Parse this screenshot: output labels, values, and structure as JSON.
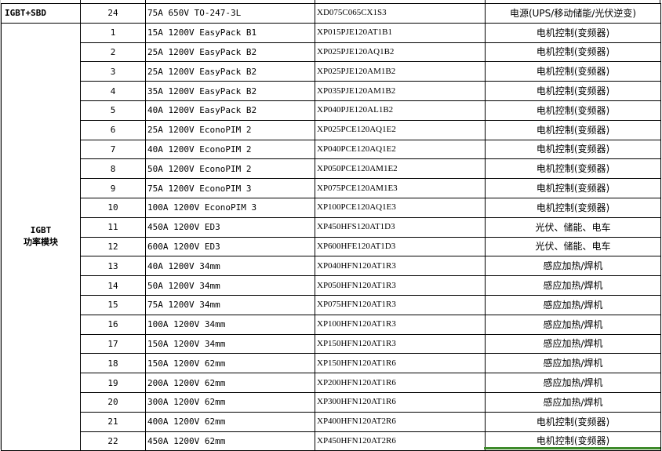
{
  "sheet": {
    "first_group": {
      "category": "IGBT+SBD",
      "row": {
        "no": "24",
        "spec": "75A 650V TO-247-3L",
        "part": "XD075C065CX1S3",
        "app": "电源(UPS/移动储能/光伏逆变)"
      }
    },
    "second_group": {
      "category_line1": "IGBT",
      "category_line2": "功率模块",
      "rows": [
        {
          "no": "1",
          "spec": "15A 1200V EasyPack B1",
          "part": "XP015PJE120AT1B1",
          "app": "电机控制(变频器)"
        },
        {
          "no": "2",
          "spec": "25A 1200V EasyPack B2",
          "part": "XP025PJE120AQ1B2",
          "app": "电机控制(变频器)"
        },
        {
          "no": "3",
          "spec": "25A 1200V EasyPack B2",
          "part": "XP025PJE120AM1B2",
          "app": "电机控制(变频器)"
        },
        {
          "no": "4",
          "spec": "35A 1200V EasyPack B2",
          "part": "XP035PJE120AM1B2",
          "app": "电机控制(变频器)"
        },
        {
          "no": "5",
          "spec": "40A 1200V EasyPack B2",
          "part": "XP040PJE120AL1B2",
          "app": "电机控制(变频器)"
        },
        {
          "no": "6",
          "spec": "25A 1200V EconoPIM 2",
          "part": "XP025PCE120AQ1E2",
          "app": "电机控制(变频器)"
        },
        {
          "no": "7",
          "spec": "40A 1200V EconoPIM 2",
          "part": "XP040PCE120AQ1E2",
          "app": "电机控制(变频器)"
        },
        {
          "no": "8",
          "spec": "50A 1200V EconoPIM 2",
          "part": "XP050PCE120AM1E2",
          "app": "电机控制(变频器)"
        },
        {
          "no": "9",
          "spec": "75A 1200V EconoPIM 3",
          "part": "XP075PCE120AM1E3",
          "app": "电机控制(变频器)"
        },
        {
          "no": "10",
          "spec": "100A 1200V EconoPIM 3",
          "part": "XP100PCE120AQ1E3",
          "app": "电机控制(变频器)"
        },
        {
          "no": "11",
          "spec": "450A 1200V ED3",
          "part": "XP450HFS120AT1D3",
          "app": "光伏、储能、电车"
        },
        {
          "no": "12",
          "spec": "600A 1200V ED3",
          "part": "XP600HFE120AT1D3",
          "app": "光伏、储能、电车"
        },
        {
          "no": "13",
          "spec": "40A 1200V 34mm",
          "part": "XP040HFN120AT1R3",
          "app": "感应加热/焊机"
        },
        {
          "no": "14",
          "spec": "50A 1200V 34mm",
          "part": "XP050HFN120AT1R3",
          "app": "感应加热/焊机"
        },
        {
          "no": "15",
          "spec": "75A 1200V 34mm",
          "part": "XP075HFN120AT1R3",
          "app": "感应加热/焊机"
        },
        {
          "no": "16",
          "spec": "100A 1200V 34mm",
          "part": "XP100HFN120AT1R3",
          "app": "感应加热/焊机"
        },
        {
          "no": "17",
          "spec": "150A 1200V 34mm",
          "part": "XP150HFN120AT1R3",
          "app": "感应加热/焊机"
        },
        {
          "no": "18",
          "spec": "150A 1200V 62mm",
          "part": "XP150HFN120AT1R6",
          "app": "感应加热/焊机"
        },
        {
          "no": "19",
          "spec": "200A 1200V 62mm",
          "part": "XP200HFN120AT1R6",
          "app": "感应加热/焊机"
        },
        {
          "no": "20",
          "spec": "300A 1200V 62mm",
          "part": "XP300HFN120AT1R6",
          "app": "感应加热/焊机"
        },
        {
          "no": "21",
          "spec": "400A 1200V 62mm",
          "part": "XP400HFN120AT2R6",
          "app": "电机控制(变频器)"
        },
        {
          "no": "22",
          "spec": "450A 1200V 62mm",
          "part": "XP450HFN120AT2R6",
          "app": "电机控制(变频器)"
        }
      ]
    },
    "colors": {
      "grid": "#000000",
      "selection": "#3d8a2a"
    }
  }
}
